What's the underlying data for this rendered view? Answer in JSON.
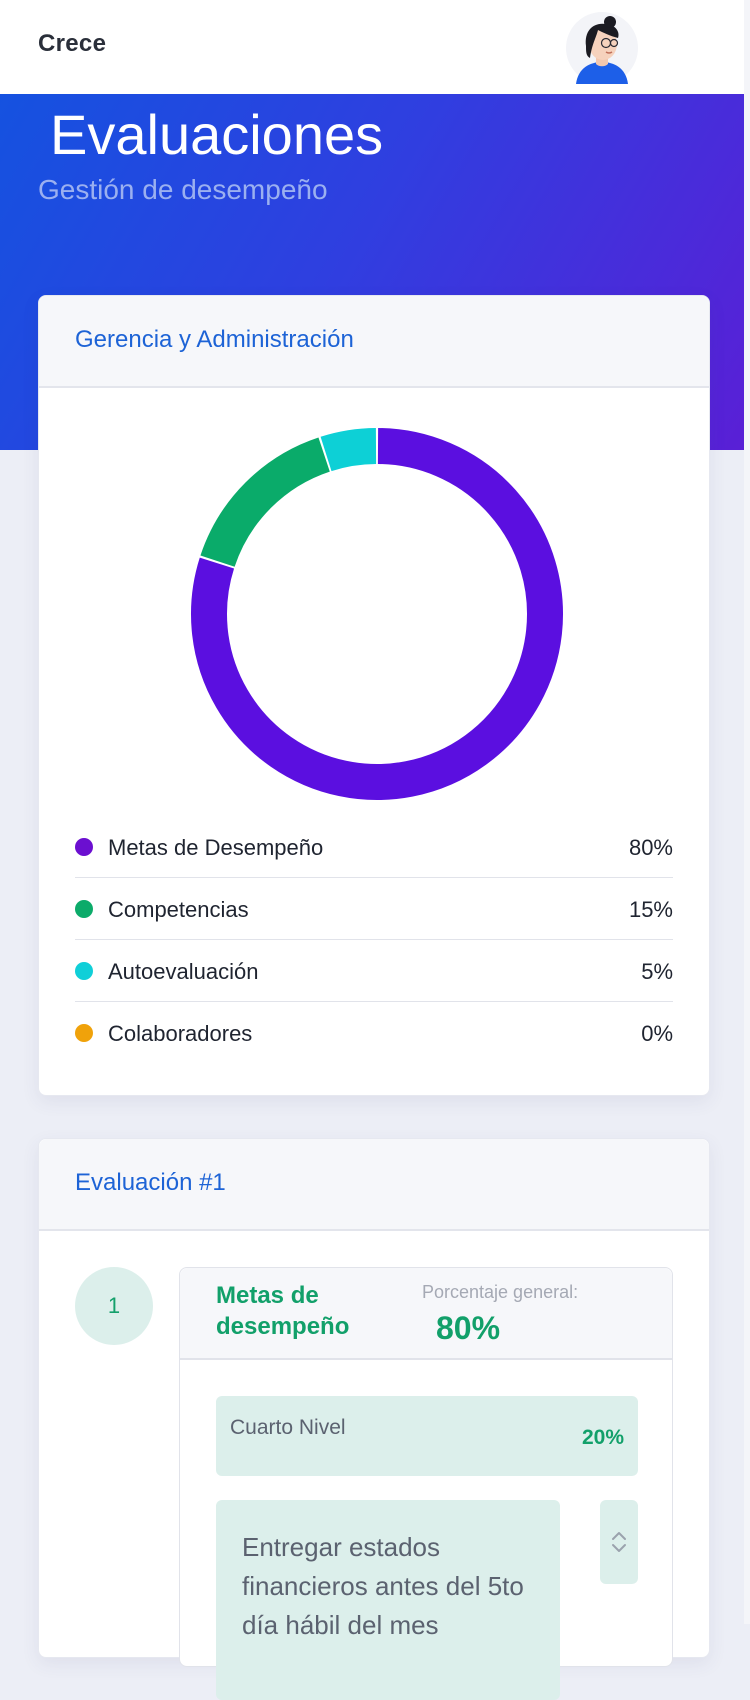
{
  "app": {
    "brand": "Crece"
  },
  "hero": {
    "title": "Evaluaciones",
    "subtitle": "Gestión de desempeño"
  },
  "summary_card": {
    "title": "Gerencia y Administración",
    "legend": [
      {
        "label": "Metas de Desempeño",
        "value": "80%",
        "color": "#6b0fd0"
      },
      {
        "label": "Competencias",
        "value": "15%",
        "color": "#0cab6a"
      },
      {
        "label": "Autoevaluación",
        "value": "5%",
        "color": "#10cfd8"
      },
      {
        "label": "Colaboradores",
        "value": "0%",
        "color": "#f0a20a"
      }
    ]
  },
  "chart_data": {
    "type": "pie",
    "variant": "donut",
    "slices": [
      {
        "label": "Metas de Desempeño",
        "value": 80,
        "color": "#5b0fe0"
      },
      {
        "label": "Competencias",
        "value": 15,
        "color": "#0aab6a"
      },
      {
        "label": "Autoevaluación",
        "value": 5,
        "color": "#0dd0d6"
      },
      {
        "label": "Colaboradores",
        "value": 0,
        "color": "#f0a20a"
      }
    ]
  },
  "evaluation_card": {
    "title": "Evaluación #1",
    "step_number": "1",
    "section_title": "Metas de desempeño",
    "general_label": "Porcentaje general:",
    "general_value": "80%",
    "level": {
      "name": "Cuarto Nivel",
      "value": "20%"
    },
    "goal_text": "Entregar estados financieros antes del 5to día hábil del mes"
  },
  "icons": {
    "avatar": "user-avatar-illustration",
    "sort": "sort-arrows-icon"
  }
}
